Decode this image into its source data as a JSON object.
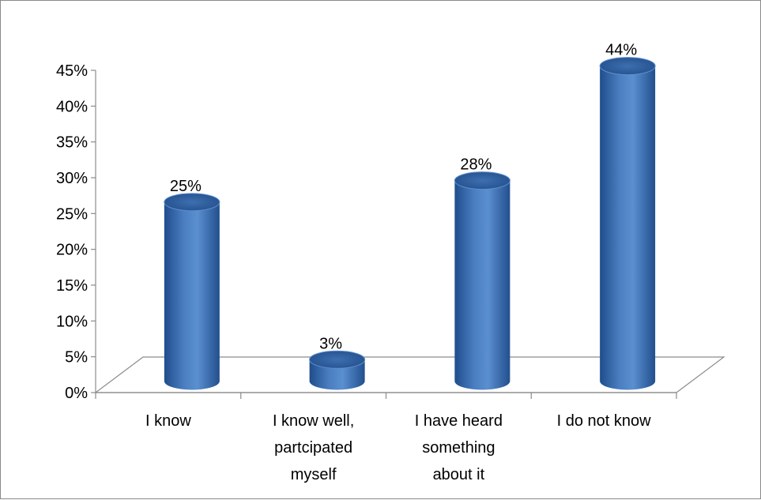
{
  "chart_data": {
    "type": "bar",
    "style": "3d-cylinder",
    "categories": [
      [
        "I know"
      ],
      [
        "I know well,",
        "partcipated",
        "myself"
      ],
      [
        "I have heard",
        "something",
        "about it"
      ],
      [
        "I do not know"
      ]
    ],
    "values": [
      25,
      3,
      28,
      44
    ],
    "data_labels": [
      "25%",
      "3%",
      "28%",
      "44%"
    ],
    "yticks": [
      "0%",
      "5%",
      "10%",
      "15%",
      "20%",
      "25%",
      "30%",
      "35%",
      "40%",
      "45%"
    ],
    "ylim": [
      0,
      45
    ],
    "title": "",
    "xlabel": "",
    "ylabel": "",
    "legend": "none",
    "grid": false,
    "bar_color": "#4a7ec0",
    "bar_top_color": "#2f5f9e"
  }
}
